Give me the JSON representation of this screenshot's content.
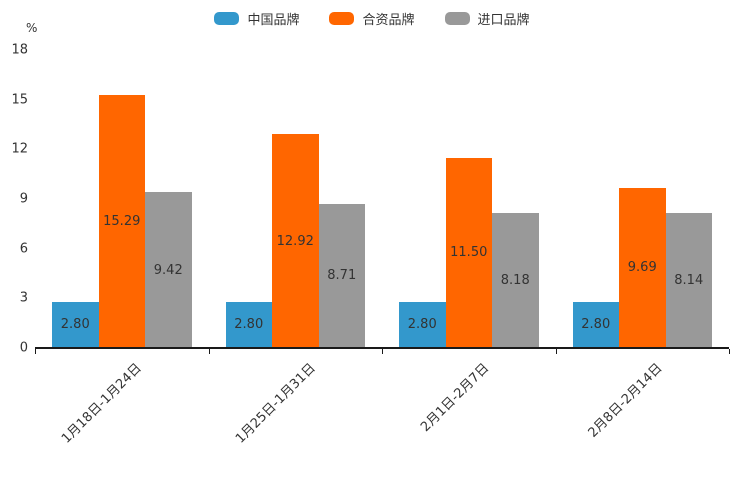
{
  "chart_data": {
    "type": "bar",
    "title": "",
    "unit_label": "%",
    "categories": [
      "1月18日-1月24日",
      "1月25日-1月31日",
      "2月1日-2月7日",
      "2月8日-2月14日"
    ],
    "series": [
      {
        "name": "中国品牌",
        "color": "#3398CC",
        "values": [
          2.8,
          2.8,
          2.8,
          2.8
        ]
      },
      {
        "name": "合资品牌",
        "color": "#FF6600",
        "values": [
          15.29,
          12.92,
          11.5,
          9.69
        ]
      },
      {
        "name": "进口品牌",
        "color": "#999999",
        "values": [
          9.42,
          8.71,
          8.18,
          8.14
        ]
      }
    ],
    "value_label_format": "2dp",
    "xlabel": "",
    "ylabel": "%",
    "ylim": [
      0,
      18
    ],
    "yticks": [
      0,
      3,
      6,
      9,
      12,
      15,
      18
    ],
    "grid": false,
    "legend_position": "top",
    "axis_color": "#1a1a1a",
    "text_color": "#333333",
    "background_color": "#ffffff"
  }
}
